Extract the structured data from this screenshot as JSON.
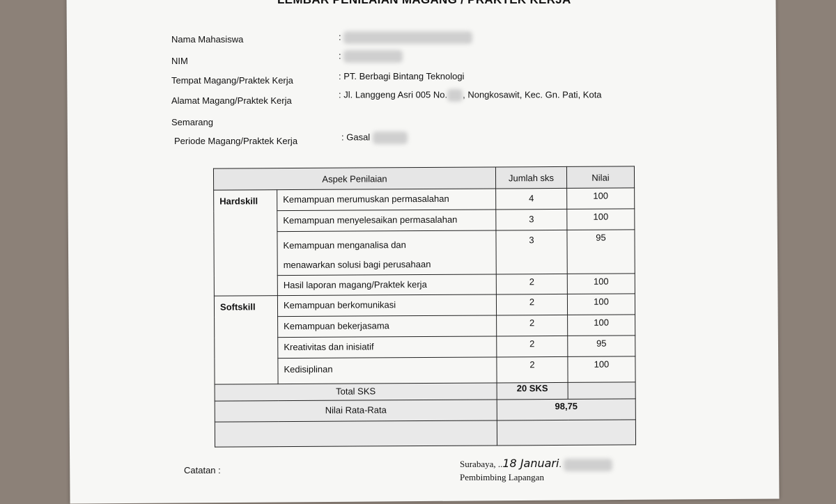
{
  "title": "LEMBAR PENILAIAN MAGANG / PRAKTEK KERJA",
  "fields": [
    {
      "label": "Nama   Mahasiswa",
      "value": ":"
    },
    {
      "label": "NIM",
      "value": ":"
    },
    {
      "label": "Tempat Magang/Praktek Kerja",
      "value": ": PT. Berbagi Bintang Teknologi"
    },
    {
      "label": "Alamat Magang/Praktek Kerja",
      "value": ": Jl. Langgeng Asri 005 No.",
      "value_suffix": ", Nongkosawit, Kec. Gn. Pati, Kota"
    },
    {
      "label": "Semarang",
      "value": ""
    },
    {
      "label": "Periode Magang/Praktek Kerja",
      "value": ": Gasal"
    }
  ],
  "table": {
    "headers": [
      "Aspek Penilaian",
      "Jumlah sks",
      "Nilai"
    ],
    "groups": [
      "Hardskill",
      "Softskill"
    ],
    "rows": [
      {
        "aspect": "Kemampuan merumuskan permasalahan",
        "sks": "4",
        "nilai": "100"
      },
      {
        "aspect": "Kemampuan menyelesaikan permasalahan",
        "sks": "3",
        "nilai": "100"
      },
      {
        "aspect": "Kemampuan menganalisa dan menawarkan solusi bagi perusahaan",
        "sks": "3",
        "nilai": "95"
      },
      {
        "aspect": "Hasil laporan magang/Praktek kerja",
        "sks": "2",
        "nilai": "100"
      },
      {
        "aspect": "Kemampuan berkomunikasi",
        "sks": "2",
        "nilai": "100"
      },
      {
        "aspect": "Kemampuan bekerjasama",
        "sks": "2",
        "nilai": "100"
      },
      {
        "aspect": "Kreativitas dan inisiatif",
        "sks": "2",
        "nilai": "95"
      },
      {
        "aspect": "Kedisiplinan",
        "sks": "2",
        "nilai": "100"
      }
    ],
    "total_label": "Total SKS",
    "total_value": "20 SKS",
    "average_label": "Nilai Rata-Rata",
    "average_value": "98,75"
  },
  "footer": {
    "notes_label": "Catatan :",
    "place_date_prefix": "Surabaya, ..",
    "date_handwritten": "18 Januari",
    "supervisor_label": "Pembimbing Lapangan"
  }
}
